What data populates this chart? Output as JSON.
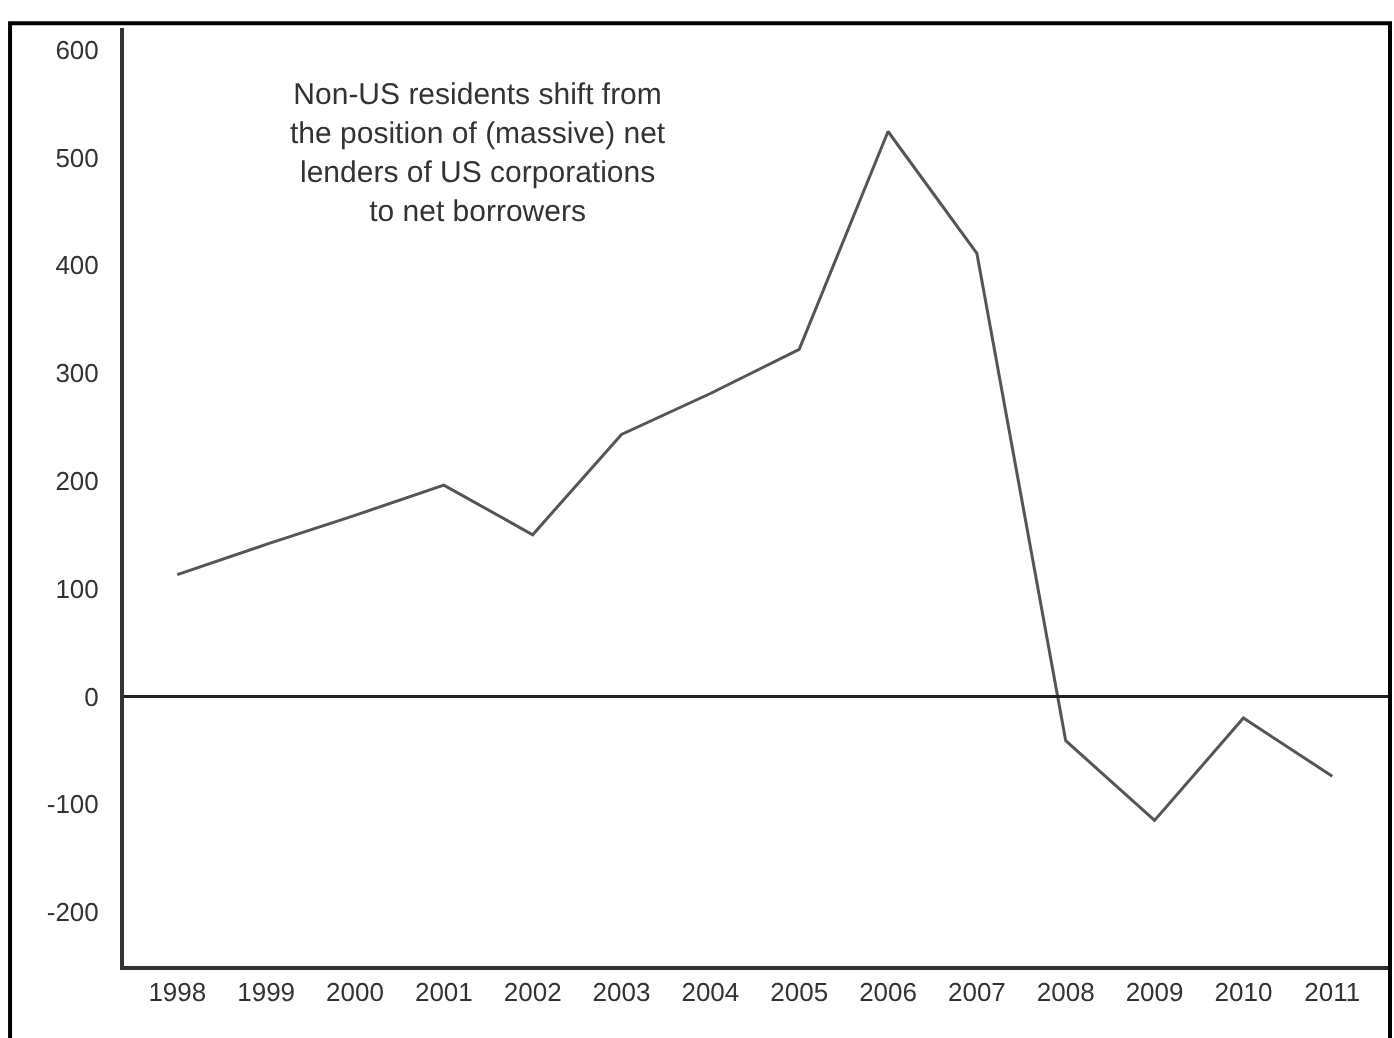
{
  "chart_data": {
    "type": "line",
    "categories": [
      "1998",
      "1999",
      "2000",
      "2001",
      "2002",
      "2003",
      "2004",
      "2005",
      "2006",
      "2007",
      "2008",
      "2009",
      "2010",
      "2011"
    ],
    "series": [
      {
        "color": "#555555",
        "values": [
          113,
          141,
          168,
          196,
          150,
          243,
          281,
          322,
          524,
          411,
          -41,
          -115,
          -20,
          -74
        ]
      }
    ],
    "ylim": [
      -250,
      620
    ],
    "yticks": [
      -200,
      -100,
      0,
      100,
      200,
      300,
      400,
      500,
      600
    ],
    "ref_lines": [
      {
        "axis": "y",
        "value": 0,
        "color": "#222222"
      }
    ],
    "annotations": [
      "Non-US residents shift from\nthe position of (massive) net\nlenders of US corporations\nto net borrowers"
    ],
    "marker": "none",
    "line_style": "solid"
  }
}
